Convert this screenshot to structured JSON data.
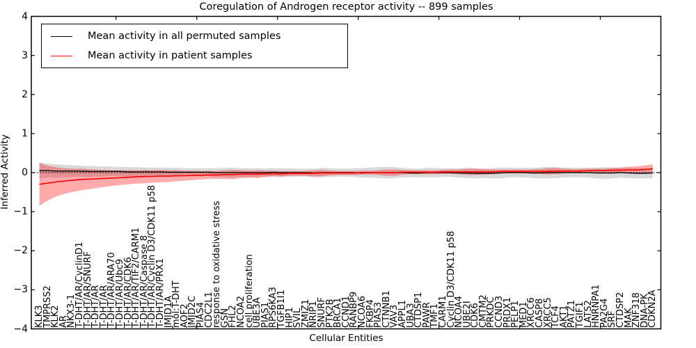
{
  "figure": {
    "title": "Coregulation of Androgen receptor activity -- 899 samples",
    "background": "#ffffff"
  },
  "legend": {
    "position": "upper left",
    "items": [
      {
        "label": "Mean activity in all permuted samples",
        "color": "#000000"
      },
      {
        "label": "Mean activity in patient samples",
        "color": "#ff0000"
      }
    ]
  },
  "chart_data": {
    "type": "line",
    "title": "Coregulation of Androgen receptor activity -- 899 samples",
    "xlabel": "Cellular Entities",
    "ylabel": "Inferred Activity",
    "ylim": [
      -4,
      4
    ],
    "grid": false,
    "legend_position": "upper left",
    "y_ticks": [
      {
        "value": 4,
        "label": "4"
      },
      {
        "value": 3,
        "label": "3"
      },
      {
        "value": 2,
        "label": "2"
      },
      {
        "value": 1,
        "label": "1"
      },
      {
        "value": 0,
        "label": "0"
      },
      {
        "value": -1,
        "label": "−1"
      },
      {
        "value": -2,
        "label": "−2"
      },
      {
        "value": -3,
        "label": "−3"
      },
      {
        "value": -4,
        "label": "−4"
      }
    ],
    "zero_line": {
      "y": 0,
      "style": "dotted",
      "color": "#000000"
    },
    "categories": [
      "KLK3",
      "TMPRSS2",
      "KLK2",
      "AR",
      "NKX3-1",
      "T-DHT/AR/CyclinD1",
      "T-DHT/AR/SNURF",
      "T-DHT/AR",
      "T-DHT/AR",
      "T-DHT/AR/ARA70",
      "T-DHT/AR/Ubc9",
      "T-DHT/AR/CDK6",
      "T-DHT/AR/TIF2/CARM1",
      "T-DHT/AR/Caspase 8",
      "T-DHT/AR/Cyclin D3/CDK11 p58",
      "T-DHT/AR/PRX1",
      "JMJD1A",
      "mol:T-DHT",
      "AOF2",
      "JMJD2C",
      "PIAS4",
      "CDC2L1",
      "response to oxidative stress",
      "GSN",
      "FHL2",
      "NCOA2",
      "cell proliferation",
      "UBE3A",
      "PIAS1",
      "RPS6KA3",
      "TGFB1I1",
      "HIP1",
      "SVIL",
      "ZMIZ1",
      "NRIP1",
      "SNURF",
      "PTK2B",
      "BRCA1",
      "CCND1",
      "RANBP9",
      "NCOA6",
      "FKBP4",
      "PIAS3",
      "CTNNB1",
      "VAV3",
      "APPL1",
      "UBA3",
      "CTDSP1",
      "PAWR",
      "TMF1",
      "CARM1",
      "Cyclin D3/CDK11 p58",
      "NCOA4",
      "UBE2I",
      "CDK6",
      "CMTM2",
      "PRKDC",
      "CCND3",
      "PRDX1",
      "PELP1",
      "MED1",
      "XRCC6",
      "CASP8",
      "XRCC5",
      "TCF4",
      "AKT1",
      "PATZ1",
      "TGIF1",
      "LATS2",
      "HNRNPA1",
      "PA2G4",
      "SRF",
      "CTDSP2",
      "MAK",
      "ZNF318",
      "DNA-PK",
      "CDKN2A"
    ],
    "series": [
      {
        "name": "Mean activity in all permuted samples",
        "color": "#000000",
        "band_color": "rgba(128,128,128,0.30)",
        "values": [
          0.05,
          0.05,
          0.04,
          0.04,
          0.04,
          0.04,
          0.03,
          0.03,
          0.03,
          0.03,
          0.03,
          0.02,
          0.02,
          0.02,
          0.02,
          0.02,
          0.01,
          0.01,
          0.01,
          0.01,
          0.01,
          0.01,
          0.0,
          0.0,
          0.0,
          0.0,
          0.0,
          0.0,
          0.0,
          0.01,
          0.0,
          0.0,
          0.0,
          0.0,
          -0.01,
          0.0,
          0.0,
          0.0,
          0.0,
          0.0,
          -0.01,
          0.0,
          0.0,
          0.0,
          0.0,
          0.0,
          -0.01,
          -0.01,
          0.0,
          0.0,
          0.0,
          0.0,
          -0.01,
          -0.01,
          -0.02,
          -0.02,
          -0.02,
          -0.01,
          0.0,
          0.0,
          0.0,
          -0.01,
          -0.01,
          0.0,
          0.0,
          0.0,
          0.0,
          0.0,
          0.0,
          -0.01,
          -0.01,
          -0.01,
          0.0,
          -0.01,
          -0.02,
          -0.02,
          -0.01
        ],
        "std": [
          0.2,
          0.18,
          0.17,
          0.16,
          0.15,
          0.14,
          0.14,
          0.13,
          0.13,
          0.12,
          0.12,
          0.12,
          0.12,
          0.11,
          0.11,
          0.11,
          0.11,
          0.11,
          0.1,
          0.1,
          0.1,
          0.1,
          0.11,
          0.12,
          0.12,
          0.11,
          0.11,
          0.11,
          0.1,
          0.1,
          0.11,
          0.11,
          0.1,
          0.1,
          0.11,
          0.12,
          0.11,
          0.1,
          0.1,
          0.11,
          0.12,
          0.13,
          0.14,
          0.15,
          0.14,
          0.12,
          0.11,
          0.11,
          0.12,
          0.12,
          0.11,
          0.11,
          0.12,
          0.13,
          0.13,
          0.12,
          0.13,
          0.14,
          0.13,
          0.12,
          0.12,
          0.13,
          0.14,
          0.15,
          0.14,
          0.13,
          0.12,
          0.12,
          0.13,
          0.14,
          0.15,
          0.14,
          0.13,
          0.13,
          0.13,
          0.13,
          0.13
        ]
      },
      {
        "name": "Mean activity in patient samples",
        "color": "#ff0000",
        "band_color": "rgba(255,0,0,0.33)",
        "values": [
          -0.3,
          -0.27,
          -0.24,
          -0.22,
          -0.2,
          -0.18,
          -0.17,
          -0.16,
          -0.15,
          -0.14,
          -0.13,
          -0.12,
          -0.11,
          -0.1,
          -0.1,
          -0.09,
          -0.09,
          -0.08,
          -0.08,
          -0.07,
          -0.07,
          -0.06,
          -0.06,
          -0.05,
          -0.05,
          -0.04,
          -0.04,
          -0.04,
          -0.03,
          -0.03,
          -0.03,
          -0.02,
          -0.02,
          -0.02,
          -0.02,
          -0.01,
          -0.01,
          -0.01,
          -0.01,
          -0.01,
          0.0,
          0.0,
          0.0,
          0.0,
          0.0,
          0.01,
          0.01,
          0.01,
          0.01,
          0.01,
          0.02,
          0.02,
          0.02,
          0.02,
          0.02,
          0.02,
          0.02,
          0.03,
          0.03,
          0.03,
          0.03,
          0.03,
          0.03,
          0.03,
          0.04,
          0.04,
          0.04,
          0.04,
          0.05,
          0.05,
          0.05,
          0.06,
          0.06,
          0.07,
          0.07,
          0.08,
          0.1
        ],
        "std": [
          0.55,
          0.45,
          0.38,
          0.33,
          0.3,
          0.28,
          0.26,
          0.24,
          0.22,
          0.2,
          0.19,
          0.18,
          0.17,
          0.17,
          0.16,
          0.16,
          0.15,
          0.14,
          0.13,
          0.12,
          0.11,
          0.1,
          0.1,
          0.11,
          0.12,
          0.1,
          0.09,
          0.1,
          0.08,
          0.07,
          0.07,
          0.06,
          0.06,
          0.06,
          0.08,
          0.08,
          0.06,
          0.05,
          0.05,
          0.05,
          0.05,
          0.05,
          0.06,
          0.08,
          0.08,
          0.06,
          0.05,
          0.05,
          0.05,
          0.05,
          0.05,
          0.06,
          0.06,
          0.08,
          0.08,
          0.07,
          0.06,
          0.05,
          0.05,
          0.05,
          0.05,
          0.05,
          0.06,
          0.08,
          0.08,
          0.06,
          0.05,
          0.05,
          0.05,
          0.05,
          0.05,
          0.06,
          0.07,
          0.08,
          0.09,
          0.1,
          0.12
        ]
      }
    ]
  }
}
